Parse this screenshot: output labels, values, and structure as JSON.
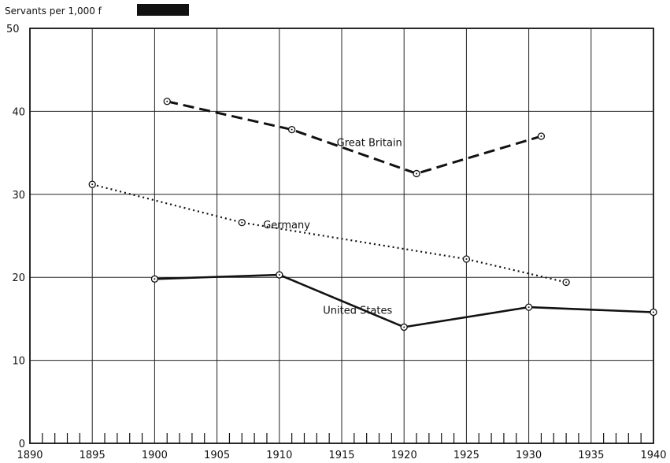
{
  "chart_data": {
    "type": "line",
    "ylabel": "Servants per 1,000 f",
    "xlim": [
      1890,
      1940
    ],
    "ylim": [
      0,
      50
    ],
    "x_ticks": [
      1890,
      1895,
      1900,
      1905,
      1910,
      1915,
      1920,
      1925,
      1930,
      1935,
      1940
    ],
    "y_ticks": [
      0,
      10,
      20,
      30,
      40,
      50
    ],
    "grid": true,
    "legend": "none (series labeled inline)",
    "series": [
      {
        "name": "Great Britain",
        "line_style": "dashed",
        "color": "#111111",
        "points": [
          [
            1901,
            41.2
          ],
          [
            1911,
            37.8
          ],
          [
            1921,
            32.5
          ],
          [
            1931,
            37.0
          ]
        ]
      },
      {
        "name": "Germany",
        "line_style": "dotted",
        "color": "#111111",
        "points": [
          [
            1895,
            31.2
          ],
          [
            1907,
            26.6
          ],
          [
            1925,
            22.2
          ],
          [
            1933,
            19.4
          ]
        ]
      },
      {
        "name": "United States",
        "line_style": "solid",
        "color": "#111111",
        "points": [
          [
            1900,
            19.8
          ],
          [
            1910,
            20.3
          ],
          [
            1920,
            14.0
          ],
          [
            1930,
            16.4
          ],
          [
            1940,
            15.8
          ]
        ]
      }
    ]
  }
}
